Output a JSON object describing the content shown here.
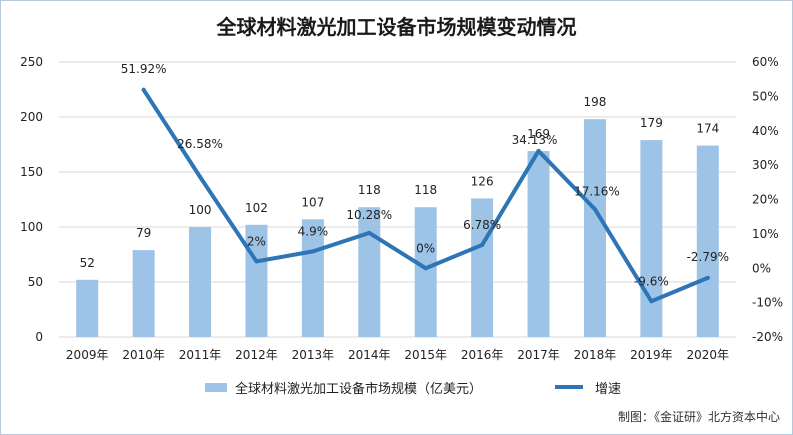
{
  "title": "全球材料激光加工设备市场规模变动情况",
  "credit": "制图：《金证研》北方资本中心",
  "colors": {
    "bar": "#9dc3e6",
    "line": "#2e75b6",
    "grid": "#d9d9d9",
    "text": "#222222"
  },
  "chart_data": {
    "type": "bar",
    "title": "全球材料激光加工设备市场规模变动情况",
    "categories": [
      "2009年",
      "2010年",
      "2011年",
      "2012年",
      "2013年",
      "2014年",
      "2015年",
      "2016年",
      "2017年",
      "2018年",
      "2019年",
      "2020年"
    ],
    "series": [
      {
        "name": "全球材料激光加工设备市场规模（亿美元）",
        "type": "bar",
        "axis": "left",
        "values": [
          52,
          79,
          100,
          102,
          107,
          118,
          118,
          126,
          169,
          198,
          179,
          174
        ],
        "labels": [
          "52",
          "79",
          "100",
          "102",
          "107",
          "118",
          "118",
          "126",
          "169",
          "198",
          "179",
          "174"
        ]
      },
      {
        "name": "增速",
        "type": "line",
        "axis": "right",
        "values": [
          null,
          51.92,
          26.58,
          2,
          4.9,
          10.28,
          0,
          6.78,
          34.13,
          17.16,
          -9.6,
          -2.79
        ],
        "labels": [
          null,
          "51.92%",
          "26.58%",
          "2%",
          "4.9%",
          "10.28%",
          "0%",
          "6.78%",
          "34.13%",
          "17.16%",
          "-9.6%",
          "-2.79%"
        ]
      }
    ],
    "y_left": {
      "min": 0,
      "max": 250,
      "ticks": [
        "0",
        "50",
        "100",
        "150",
        "200",
        "250"
      ]
    },
    "y_right": {
      "min": -20,
      "max": 60,
      "ticks": [
        "-20%",
        "-10%",
        "0%",
        "10%",
        "20%",
        "30%",
        "40%",
        "50%",
        "60%"
      ]
    },
    "grid": true,
    "legend_position": "bottom"
  }
}
